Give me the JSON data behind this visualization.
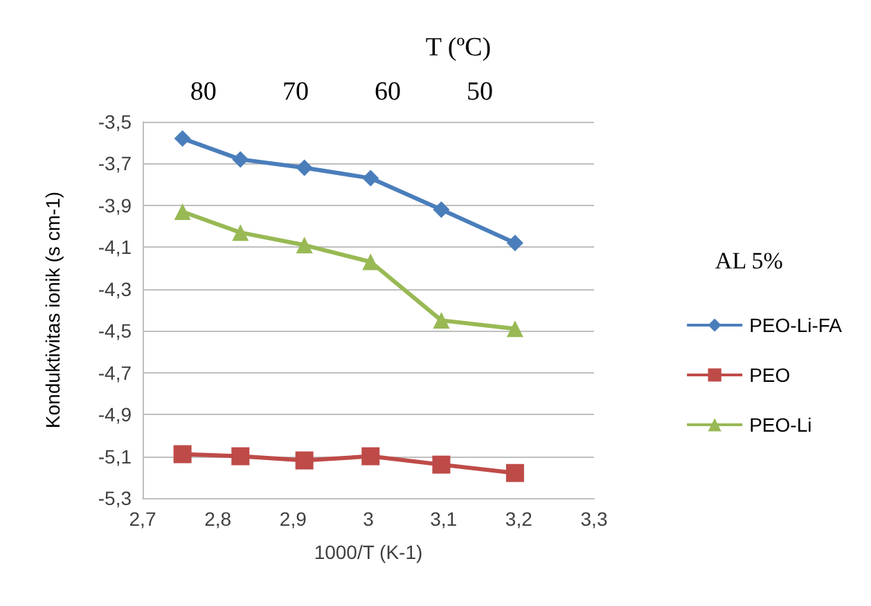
{
  "chart_data": {
    "type": "line",
    "xlabel": "1000/T (K-1)",
    "ylabel": "Konduktivitas ionik (s cm-1)",
    "x2label": "T (ºC)",
    "legend_title": "AL 5%",
    "x": [
      2.753,
      2.83,
      2.915,
      3.003,
      3.097,
      3.195
    ],
    "series": [
      {
        "name": "PEO-Li-FA",
        "color": "#4a7ebb",
        "marker": "diamond",
        "values": [
          -3.58,
          -3.68,
          -3.72,
          -3.77,
          -3.92,
          -4.08
        ]
      },
      {
        "name": "PEO",
        "color": "#be4b48",
        "marker": "square",
        "values": [
          -5.09,
          -5.1,
          -5.12,
          -5.1,
          -5.14,
          -5.18
        ]
      },
      {
        "name": "PEO-Li",
        "color": "#98b954",
        "marker": "triangle",
        "values": [
          -3.93,
          -4.03,
          -4.09,
          -4.17,
          -4.45,
          -4.49
        ]
      }
    ],
    "xlim": [
      2.7,
      3.3
    ],
    "xticks": [
      {
        "value": 2.7,
        "label": "2,7"
      },
      {
        "value": 2.8,
        "label": "2,8"
      },
      {
        "value": 2.9,
        "label": "2,9"
      },
      {
        "value": 3,
        "label": "3"
      },
      {
        "value": 3.1,
        "label": "3,1"
      },
      {
        "value": 3.2,
        "label": "3,2"
      },
      {
        "value": 3.3,
        "label": "3,3"
      }
    ],
    "x2lim": [
      86.6,
      37.6
    ],
    "x2ticks": [
      80,
      70,
      60,
      50
    ],
    "ylim": [
      -5.3,
      -3.5
    ],
    "yticks": [
      {
        "value": -3.5,
        "label": "-3,5"
      },
      {
        "value": -3.7,
        "label": "-3,7"
      },
      {
        "value": -3.9,
        "label": "-3,9"
      },
      {
        "value": -4.1,
        "label": "-4,1"
      },
      {
        "value": -4.3,
        "label": "-4,3"
      },
      {
        "value": -4.5,
        "label": "-4,5"
      },
      {
        "value": -4.7,
        "label": "-4,7"
      },
      {
        "value": -4.9,
        "label": "-4,9"
      },
      {
        "value": -5.1,
        "label": "-5,1"
      },
      {
        "value": -5.3,
        "label": "-5,3"
      }
    ],
    "grid": "y",
    "legend": "right",
    "line_style": "solid"
  }
}
